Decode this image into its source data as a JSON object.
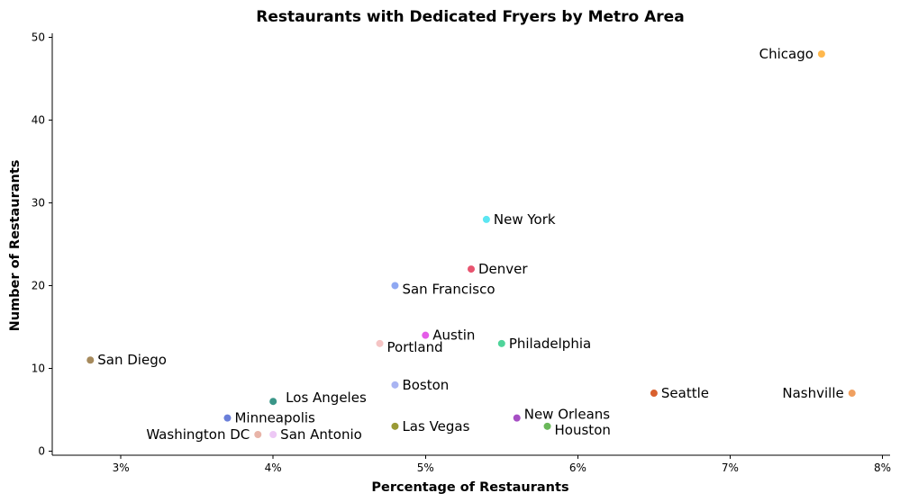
{
  "chart_data": {
    "type": "scatter",
    "title": "Restaurants with Dedicated Fryers by Metro Area",
    "xlabel": "Percentage of Restaurants",
    "ylabel": "Number of Restaurants",
    "xlim": [
      2.55,
      8.05
    ],
    "ylim": [
      -0.5,
      50.5
    ],
    "x_ticks": [
      3,
      4,
      5,
      6,
      7,
      8
    ],
    "x_tick_labels": [
      "3%",
      "4%",
      "5%",
      "6%",
      "7%",
      "8%"
    ],
    "y_ticks": [
      0,
      10,
      20,
      30,
      40,
      50
    ],
    "y_tick_labels": [
      "0",
      "10",
      "20",
      "30",
      "40",
      "50"
    ],
    "grid": false,
    "points": [
      {
        "label": "Chicago",
        "x": 7.6,
        "y": 48,
        "color": "#ffb84d",
        "label_side": "left"
      },
      {
        "label": "New York",
        "x": 5.4,
        "y": 28,
        "color": "#5ce6f2",
        "label_side": "right"
      },
      {
        "label": "Denver",
        "x": 5.3,
        "y": 22,
        "color": "#e8546f",
        "label_side": "right"
      },
      {
        "label": "San Francisco",
        "x": 4.8,
        "y": 20,
        "color": "#8fa8f2",
        "label_side": "right-below"
      },
      {
        "label": "Austin",
        "x": 5.0,
        "y": 14,
        "color": "#e45ce8",
        "label_side": "right"
      },
      {
        "label": "Portland",
        "x": 4.7,
        "y": 13,
        "color": "#f5c4c4",
        "label_side": "right-below"
      },
      {
        "label": "Philadelphia",
        "x": 5.5,
        "y": 13,
        "color": "#4fd49a",
        "label_side": "right"
      },
      {
        "label": "San Diego",
        "x": 2.8,
        "y": 11,
        "color": "#a68a5c",
        "label_side": "right"
      },
      {
        "label": "Boston",
        "x": 4.8,
        "y": 8,
        "color": "#a9b4f2",
        "label_side": "right"
      },
      {
        "label": "Seattle",
        "x": 6.5,
        "y": 7,
        "color": "#d9602e",
        "label_side": "right"
      },
      {
        "label": "Nashville",
        "x": 7.8,
        "y": 7,
        "color": "#f0a060",
        "label_side": "left"
      },
      {
        "label": "Los Angeles",
        "x": 4.0,
        "y": 6,
        "color": "#3a9688",
        "label_side": "right-above"
      },
      {
        "label": "Minneapolis",
        "x": 3.7,
        "y": 4,
        "color": "#6a7fd9",
        "label_side": "right"
      },
      {
        "label": "New Orleans",
        "x": 5.6,
        "y": 4,
        "color": "#a64fc4",
        "label_side": "right-above"
      },
      {
        "label": "Las Vegas",
        "x": 4.8,
        "y": 3,
        "color": "#9a9a35",
        "label_side": "right"
      },
      {
        "label": "Houston",
        "x": 5.8,
        "y": 3,
        "color": "#6ab85a",
        "label_side": "right-below"
      },
      {
        "label": "Washington DC",
        "x": 3.9,
        "y": 2,
        "color": "#e8b4a8",
        "label_side": "left"
      },
      {
        "label": "San Antonio",
        "x": 4.0,
        "y": 2,
        "color": "#edc8f5",
        "label_side": "right"
      }
    ]
  }
}
